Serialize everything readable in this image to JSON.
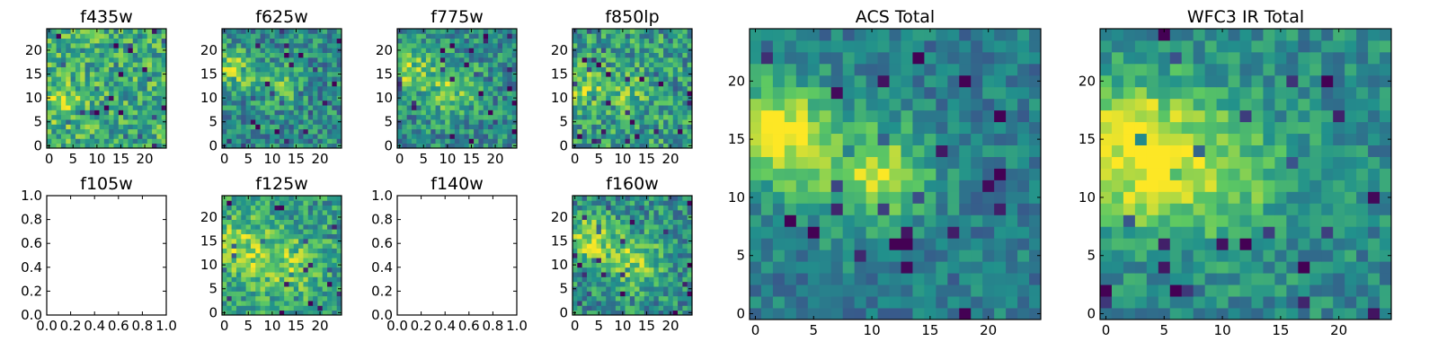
{
  "figure": {
    "background": "#ffffff",
    "colormap": [
      "#440154",
      "#3b528b",
      "#21918c",
      "#5ec962",
      "#fde725"
    ]
  },
  "chart_data": [
    {
      "id": "p-f435w",
      "type": "heatmap",
      "title": "f435w",
      "grid_size": 25,
      "xlim": [
        -0.5,
        24.5
      ],
      "ylim": [
        -0.5,
        24.5
      ],
      "xticks": [
        0,
        5,
        10,
        15,
        20
      ],
      "yticks": [
        0,
        5,
        10,
        15,
        20
      ],
      "seed": 11,
      "noise": 0.5,
      "base": 0.62,
      "blobs": [
        [
          3,
          9,
          3,
          0.25
        ]
      ]
    },
    {
      "id": "p-f625w",
      "type": "heatmap",
      "title": "f625w",
      "grid_size": 25,
      "xlim": [
        -0.5,
        24.5
      ],
      "ylim": [
        -0.5,
        24.5
      ],
      "xticks": [
        0,
        5,
        10,
        15,
        20
      ],
      "yticks": [
        0,
        5,
        10,
        15,
        20
      ],
      "seed": 23,
      "noise": 0.45,
      "base": 0.48,
      "blobs": [
        [
          2,
          16,
          3,
          0.35
        ],
        [
          12,
          13,
          3,
          0.25
        ]
      ]
    },
    {
      "id": "p-f775w",
      "type": "heatmap",
      "title": "f775w",
      "grid_size": 25,
      "xlim": [
        -0.5,
        24.5
      ],
      "ylim": [
        -0.5,
        24.5
      ],
      "xticks": [
        0,
        5,
        10,
        15,
        20
      ],
      "yticks": [
        0,
        5,
        10,
        15,
        20
      ],
      "seed": 37,
      "noise": 0.45,
      "base": 0.48,
      "blobs": [
        [
          2,
          16,
          3,
          0.35
        ],
        [
          11,
          12,
          4,
          0.3
        ]
      ]
    },
    {
      "id": "p-f850lp",
      "type": "heatmap",
      "title": "f850lp",
      "grid_size": 25,
      "xlim": [
        -0.5,
        24.5
      ],
      "ylim": [
        -0.5,
        24.5
      ],
      "xticks": [
        0,
        5,
        10,
        15,
        20
      ],
      "yticks": [
        0,
        5,
        10,
        15,
        20
      ],
      "seed": 53,
      "noise": 0.5,
      "base": 0.55,
      "blobs": [
        [
          2,
          12,
          3,
          0.25
        ],
        [
          11,
          12,
          3,
          0.2
        ]
      ]
    },
    {
      "id": "p-f105w",
      "type": "empty",
      "title": "f105w",
      "xlim": [
        0,
        1
      ],
      "ylim": [
        0,
        1
      ],
      "xticks": [
        "0.0",
        "0.2",
        "0.4",
        "0.6",
        "0.8",
        "1.0"
      ],
      "yticks": [
        "0.0",
        "0.2",
        "0.4",
        "0.6",
        "0.8",
        "1.0"
      ]
    },
    {
      "id": "p-f125w",
      "type": "heatmap",
      "title": "f125w",
      "grid_size": 25,
      "xlim": [
        -0.5,
        24.5
      ],
      "ylim": [
        -0.5,
        24.5
      ],
      "xticks": [
        0,
        5,
        10,
        15,
        20
      ],
      "yticks": [
        0,
        5,
        10,
        15,
        20
      ],
      "seed": 71,
      "noise": 0.45,
      "base": 0.55,
      "blobs": [
        [
          3,
          14,
          4,
          0.3
        ],
        [
          12,
          10,
          5,
          0.25
        ]
      ]
    },
    {
      "id": "p-f140w",
      "type": "empty",
      "title": "f140w",
      "xlim": [
        0,
        1
      ],
      "ylim": [
        0,
        1
      ],
      "xticks": [
        "0.0",
        "0.2",
        "0.4",
        "0.6",
        "0.8",
        "1.0"
      ],
      "yticks": [
        "0.0",
        "0.2",
        "0.4",
        "0.6",
        "0.8",
        "1.0"
      ]
    },
    {
      "id": "p-f160w",
      "type": "heatmap",
      "title": "f160w",
      "grid_size": 25,
      "xlim": [
        -0.5,
        24.5
      ],
      "ylim": [
        -0.5,
        24.5
      ],
      "xticks": [
        0,
        5,
        10,
        15,
        20
      ],
      "yticks": [
        0,
        5,
        10,
        15,
        20
      ],
      "seed": 89,
      "noise": 0.45,
      "base": 0.5,
      "blobs": [
        [
          3,
          15,
          4,
          0.35
        ],
        [
          13,
          11,
          4,
          0.3
        ]
      ]
    },
    {
      "id": "p-acs-total",
      "type": "heatmap",
      "title": "ACS Total",
      "grid_size": 25,
      "xlim": [
        -0.5,
        24.5
      ],
      "ylim": [
        -0.5,
        24.5
      ],
      "xticks": [
        0,
        5,
        10,
        15,
        20
      ],
      "yticks": [
        0,
        5,
        10,
        15,
        20
      ],
      "seed": 101,
      "noise": 0.3,
      "base": 0.42,
      "blobs": [
        [
          2,
          16,
          3,
          0.5
        ],
        [
          11,
          12,
          3,
          0.4
        ],
        [
          5,
          12,
          4,
          0.15
        ]
      ]
    },
    {
      "id": "p-wfc3-total",
      "type": "heatmap",
      "title": "WFC3 IR Total",
      "grid_size": 25,
      "xlim": [
        -0.5,
        24.5
      ],
      "ylim": [
        -0.5,
        24.5
      ],
      "xticks": [
        0,
        5,
        10,
        15,
        20
      ],
      "yticks": [
        0,
        5,
        10,
        15,
        20
      ],
      "seed": 131,
      "noise": 0.32,
      "base": 0.48,
      "blobs": [
        [
          2,
          15,
          4,
          0.45
        ],
        [
          10,
          12,
          4,
          0.3
        ],
        [
          4,
          11,
          3,
          0.15
        ]
      ]
    }
  ]
}
